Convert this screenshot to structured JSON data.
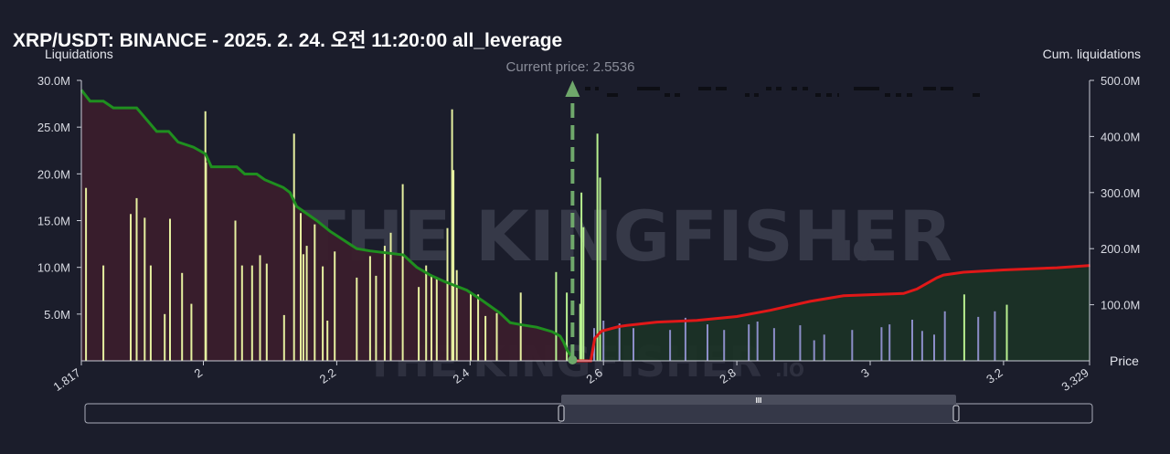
{
  "header": {
    "title": "XRP/USDT: BINANCE - 2025. 2. 24. 오전 11:20:00 all_leverage"
  },
  "watermark": {
    "text": "THE KINGFISHER",
    "suffix": ".IO"
  },
  "colors": {
    "background": "#1b1d2b",
    "long_cum_line": "#1f8f1f",
    "short_cum_line": "#e01818",
    "long_bar": "#e6f0a0",
    "short_bar_high": "#b8f090",
    "short_bar_low": "#8c8ec8",
    "current_price": "#6fa86b",
    "long_area": "#3a1e2c",
    "short_area": "#1c3326"
  },
  "chart_data": {
    "type": "bar",
    "title": "",
    "current_price_label": "Current price: 2.5536",
    "current_price": 2.5536,
    "x_axis": {
      "label": "Price",
      "range": [
        1.817,
        3.329
      ],
      "ticks": [
        "1.817",
        "2",
        "2.2",
        "2.4",
        "2.6",
        "2.8",
        "3",
        "3.2",
        "3.329"
      ]
    },
    "y_left": {
      "label": "Liquidations",
      "range": [
        0,
        30
      ],
      "ticks": [
        "5.0M",
        "10.0M",
        "15.0M",
        "20.0M",
        "25.0M",
        "30.0M"
      ]
    },
    "y_right": {
      "label": "Cum. liquidations",
      "range": [
        0,
        500
      ],
      "ticks": [
        "100.0M",
        "200.0M",
        "300.0M",
        "400.0M",
        "500.0M"
      ]
    },
    "series": [
      {
        "name": "",
        "role": "long_liquidations_M",
        "points": [
          [
            1.824,
            18.5
          ],
          [
            1.85,
            10.2
          ],
          [
            1.891,
            15.7
          ],
          [
            1.9,
            17.4
          ],
          [
            1.912,
            15.3
          ],
          [
            1.921,
            10.2
          ],
          [
            1.942,
            5.0
          ],
          [
            1.95,
            15.2
          ],
          [
            1.968,
            9.4
          ],
          [
            1.982,
            6.1
          ],
          [
            2.003,
            26.7
          ],
          [
            2.004,
            21.2
          ],
          [
            2.048,
            15.0
          ],
          [
            2.058,
            10.2
          ],
          [
            2.073,
            10.2
          ],
          [
            2.085,
            11.3
          ],
          [
            2.095,
            10.4
          ],
          [
            2.121,
            4.9
          ],
          [
            2.136,
            24.3
          ],
          [
            2.146,
            15.8
          ],
          [
            2.15,
            11.4
          ],
          [
            2.155,
            12.3
          ],
          [
            2.167,
            14.6
          ],
          [
            2.179,
            10.1
          ],
          [
            2.186,
            4.3
          ],
          [
            2.197,
            11.7
          ],
          [
            2.23,
            8.9
          ],
          [
            2.25,
            11.2
          ],
          [
            2.259,
            9.1
          ],
          [
            2.272,
            12.3
          ],
          [
            2.281,
            13.7
          ],
          [
            2.299,
            18.9
          ],
          [
            2.323,
            7.9
          ],
          [
            2.334,
            10.2
          ],
          [
            2.342,
            9.1
          ],
          [
            2.35,
            8.8
          ],
          [
            2.366,
            14.2
          ],
          [
            2.373,
            26.9
          ],
          [
            2.375,
            20.4
          ],
          [
            2.38,
            9.7
          ],
          [
            2.401,
            7.2
          ],
          [
            2.412,
            7.1
          ],
          [
            2.423,
            4.8
          ],
          [
            2.44,
            5.1
          ],
          [
            2.476,
            7.3
          ]
        ]
      },
      {
        "name": "",
        "role": "short_liquidations_M",
        "points": [
          [
            2.529,
            9.5
          ],
          [
            2.545,
            7.3
          ],
          [
            2.565,
            6.1
          ],
          [
            2.567,
            18.0
          ],
          [
            2.57,
            14.3
          ],
          [
            2.586,
            3.5
          ],
          [
            2.591,
            24.3
          ],
          [
            2.595,
            19.6
          ],
          [
            2.6,
            4.3
          ],
          [
            2.624,
            4.0
          ],
          [
            2.645,
            3.5
          ],
          [
            2.7,
            3.3
          ],
          [
            2.723,
            4.6
          ],
          [
            2.756,
            3.9
          ],
          [
            2.781,
            3.3
          ],
          [
            2.818,
            3.9
          ],
          [
            2.831,
            4.2
          ],
          [
            2.856,
            3.5
          ],
          [
            2.895,
            3.8
          ],
          [
            2.916,
            2.2
          ],
          [
            2.931,
            2.8
          ],
          [
            2.973,
            3.3
          ],
          [
            3.017,
            3.6
          ],
          [
            3.029,
            3.9
          ],
          [
            3.063,
            4.4
          ],
          [
            3.078,
            3.2
          ],
          [
            3.096,
            2.8
          ],
          [
            3.141,
            7.1
          ],
          [
            3.112,
            5.3
          ],
          [
            3.162,
            4.7
          ],
          [
            3.205,
            6.0
          ],
          [
            3.187,
            5.3
          ]
        ]
      },
      {
        "name": "",
        "role": "cum_long_liquidations_M",
        "points": [
          [
            1.817,
            483
          ],
          [
            1.83,
            463
          ],
          [
            1.85,
            463
          ],
          [
            1.865,
            451
          ],
          [
            1.9,
            451
          ],
          [
            1.93,
            409
          ],
          [
            1.948,
            409
          ],
          [
            1.962,
            390
          ],
          [
            1.985,
            381
          ],
          [
            2.003,
            369
          ],
          [
            2.012,
            346
          ],
          [
            2.05,
            346
          ],
          [
            2.062,
            333
          ],
          [
            2.08,
            333
          ],
          [
            2.092,
            323
          ],
          [
            2.12,
            309
          ],
          [
            2.13,
            300
          ],
          [
            2.14,
            275
          ],
          [
            2.17,
            250
          ],
          [
            2.19,
            231
          ],
          [
            2.23,
            200
          ],
          [
            2.25,
            196
          ],
          [
            2.3,
            189
          ],
          [
            2.32,
            167
          ],
          [
            2.34,
            153
          ],
          [
            2.36,
            142
          ],
          [
            2.395,
            126
          ],
          [
            2.42,
            106
          ],
          [
            2.445,
            85
          ],
          [
            2.46,
            68
          ],
          [
            2.478,
            64
          ],
          [
            2.5,
            60
          ],
          [
            2.523,
            52
          ],
          [
            2.535,
            44
          ],
          [
            2.54,
            34
          ],
          [
            2.545,
            20
          ],
          [
            2.5536,
            5
          ]
        ]
      },
      {
        "name": "",
        "role": "cum_short_liquidations_M",
        "points": [
          [
            2.5536,
            0
          ],
          [
            2.581,
            0
          ],
          [
            2.587,
            40
          ],
          [
            2.597,
            53
          ],
          [
            2.623,
            61
          ],
          [
            2.635,
            63
          ],
          [
            2.68,
            69
          ],
          [
            2.74,
            72
          ],
          [
            2.8,
            79
          ],
          [
            2.85,
            90
          ],
          [
            2.91,
            106
          ],
          [
            2.96,
            116
          ],
          [
            3.05,
            120
          ],
          [
            3.07,
            128
          ],
          [
            3.1,
            148
          ],
          [
            3.11,
            153
          ],
          [
            3.14,
            158
          ],
          [
            3.2,
            162
          ],
          [
            3.28,
            166
          ],
          [
            3.33,
            170
          ]
        ]
      }
    ]
  },
  "scrollbar": {
    "handle_glyph": "III"
  }
}
